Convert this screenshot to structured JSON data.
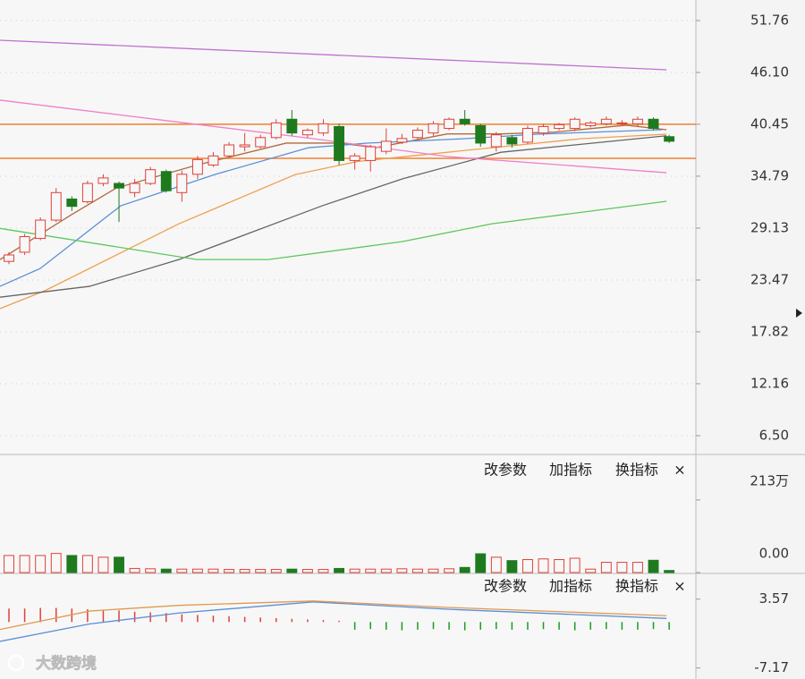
{
  "chart_data": [
    {
      "type": "candlestick",
      "up_color": "#e0403a",
      "down_color": "#1f7a1f",
      "open": [
        25.5,
        26.5,
        28,
        30,
        32.3,
        32,
        34,
        34,
        33,
        34,
        35.3,
        33,
        35,
        36,
        37,
        38,
        38,
        39,
        41,
        39.3,
        39.5,
        40.2,
        36.5,
        36.5,
        37.5,
        38.5,
        39,
        39.5,
        40,
        41,
        40.3,
        38,
        39,
        38.5,
        39.5,
        40,
        40,
        40.3,
        40.5,
        40.5,
        40.5,
        41,
        39.1
      ],
      "high": [
        26.5,
        28.5,
        30.3,
        33.5,
        32.6,
        34.3,
        35,
        34.2,
        34.5,
        35.8,
        35.5,
        35.4,
        37,
        37.4,
        38.5,
        39.5,
        39.3,
        41,
        42,
        40,
        41,
        40.5,
        37.3,
        38.2,
        40,
        39.4,
        40.1,
        40.8,
        41.2,
        42,
        40.5,
        39.6,
        39.3,
        40.3,
        40.5,
        40.6,
        41.2,
        40.8,
        41.3,
        40.9,
        41.3,
        41.2,
        39.3
      ],
      "low": [
        25.2,
        26.2,
        27.8,
        29.8,
        31,
        31.8,
        33.7,
        29.8,
        32.5,
        33.8,
        33,
        32,
        34.5,
        35.8,
        36.9,
        37.5,
        37.8,
        38.8,
        39.2,
        39,
        39.2,
        36,
        35.5,
        35.3,
        37.2,
        38.3,
        38.8,
        39.2,
        39.8,
        40.3,
        38,
        37.5,
        37.9,
        38.3,
        39.2,
        39.8,
        39.7,
        40.1,
        40.3,
        40.3,
        40.2,
        39.8,
        38.4
      ],
      "close": [
        26.2,
        28.2,
        30,
        33,
        31.5,
        34,
        34.6,
        33.5,
        34,
        35.5,
        33.2,
        35,
        36.6,
        37,
        38.2,
        38.2,
        39,
        40.6,
        39.5,
        39.8,
        40.5,
        36.5,
        37,
        38,
        38.6,
        38.9,
        39.8,
        40.5,
        41,
        40.5,
        38.4,
        39.3,
        38.3,
        40,
        40.2,
        40.4,
        41,
        40.6,
        41,
        40.6,
        41,
        40,
        38.6
      ],
      "lines": [
        {
          "color": "#b06a3b",
          "x": [
            -0.57,
            3.98,
            6.83,
            11.95,
            17.64,
            21.06,
            23.34,
            27.89,
            31.3,
            34.72,
            39.27,
            41.83
          ],
          "values": [
            25.7,
            30.6,
            33.5,
            36,
            38.4,
            38.4,
            37.9,
            39.4,
            39.4,
            39.6,
            40.35,
            39.86
          ]
        },
        {
          "color": "#5b8fd6",
          "x": [
            -0.57,
            1.99,
            7.11,
            13.09,
            19.07,
            22.77,
            29.03,
            33.58,
            41.55
          ],
          "values": [
            22.78,
            24.73,
            31.56,
            34.97,
            37.9,
            38.39,
            38.88,
            39.37,
            39.86
          ]
        },
        {
          "color": "#f0a050",
          "x": [
            -0.57,
            2.28,
            10.81,
            18.21,
            22.2,
            29.03,
            36.43,
            41.83
          ],
          "values": [
            20.35,
            22.3,
            29.6,
            34.97,
            36.4,
            37.6,
            38.88,
            39.37
          ]
        },
        {
          "color": "#666666",
          "x": [
            -0.57,
            5.12,
            10.81,
            19.92,
            25.04,
            31.3,
            41.83
          ],
          "values": [
            21.6,
            22.78,
            25.7,
            31.56,
            34.5,
            37.4,
            39.2
          ]
        },
        {
          "color": "#5cc85c",
          "x": [
            -0.57,
            11.95,
            16.5,
            25.04,
            30.73,
            41.83
          ],
          "values": [
            29.1,
            25.7,
            25.7,
            27.66,
            29.6,
            32.05
          ]
        },
        {
          "color": "#f080c8",
          "x": [
            -0.57,
            19.35,
            27.89,
            41.83
          ],
          "values": [
            43.08,
            38.88,
            36.93,
            35.17
          ]
        },
        {
          "color": "#c070d0",
          "x": [
            -0.57,
            41.83
          ],
          "values": [
            49.61,
            46.39
          ]
        }
      ],
      "hlines": [
        {
          "value": 40.45,
          "color": "#f08030"
        },
        {
          "value": 36.74,
          "color": "#f08030"
        }
      ],
      "xlim": [
        -0.57,
        43.7
      ],
      "ylim": [
        4.45,
        54.0
      ],
      "yticks": [
        51.76,
        {
          "value": 46.1,
          "label": "46.10"
        },
        40.45,
        34.79,
        29.13,
        23.47,
        17.82,
        12.16,
        {
          "value": 6.5,
          "label": "6.50"
        }
      ],
      "grid": true
    },
    {
      "type": "bar",
      "buttons": [
        "改参数",
        "加指标",
        "换指标",
        "×"
      ],
      "values": [
        500000,
        500000,
        500000,
        560000,
        500000,
        500000,
        450000,
        450000,
        120000,
        110000,
        100000,
        100000,
        100000,
        100000,
        90000,
        90000,
        90000,
        90000,
        100000,
        90000,
        90000,
        120000,
        100000,
        100000,
        100000,
        110000,
        100000,
        100000,
        110000,
        150000,
        550000,
        450000,
        350000,
        380000,
        400000,
        380000,
        420000,
        100000,
        300000,
        300000,
        300000,
        360000,
        60000
      ],
      "xlim": [
        -0.57,
        43.7
      ],
      "ylim": [
        0,
        3360000
      ],
      "yticks": [
        {
          "value": 2130000,
          "label": "213万"
        },
        {
          "value": 0,
          "label": "0.00"
        }
      ]
    },
    {
      "type": "macd",
      "buttons": [
        "改参数",
        "加指标",
        "换指标",
        "×"
      ],
      "up_color": "#e0403a",
      "down_color": "#1f9a1f",
      "values": [
        2.1,
        2.1,
        2.2,
        2.2,
        2.1,
        2.0,
        1.9,
        1.8,
        1.6,
        1.5,
        1.4,
        1.2,
        1.1,
        1.0,
        0.9,
        0.8,
        0.7,
        0.6,
        0.5,
        0.4,
        0.3,
        0.2,
        -1.2,
        -1.1,
        -1.2,
        -1.3,
        -1.2,
        -1.1,
        -1.2,
        -1.3,
        -1.2,
        -1.1,
        -1.2,
        -1.2,
        -1.1,
        -1.2,
        -1.3,
        -1.2,
        -1.1,
        -1.2,
        -1.2,
        -1.1,
        -1.2
      ],
      "lines": [
        {
          "color": "#5b8fd6",
          "x": [
            -0.57,
            5.12,
            10.81,
            19.35,
            27.89,
            41.83
          ],
          "values": [
            -3.02,
            -0.3,
            1.4,
            3.14,
            2.0,
            0.56
          ]
        },
        {
          "color": "#e09a50",
          "x": [
            -0.57,
            5.12,
            10.81,
            19.35,
            27.89,
            41.83
          ],
          "values": [
            -1.16,
            1.71,
            2.6,
            3.28,
            2.28,
            0.99
          ]
        }
      ],
      "xlim": [
        -0.57,
        43.7
      ],
      "ylim": [
        -8.89,
        7.44
      ],
      "yticks": [
        3.57,
        -7.17
      ]
    }
  ],
  "watermark": "大数跨境"
}
